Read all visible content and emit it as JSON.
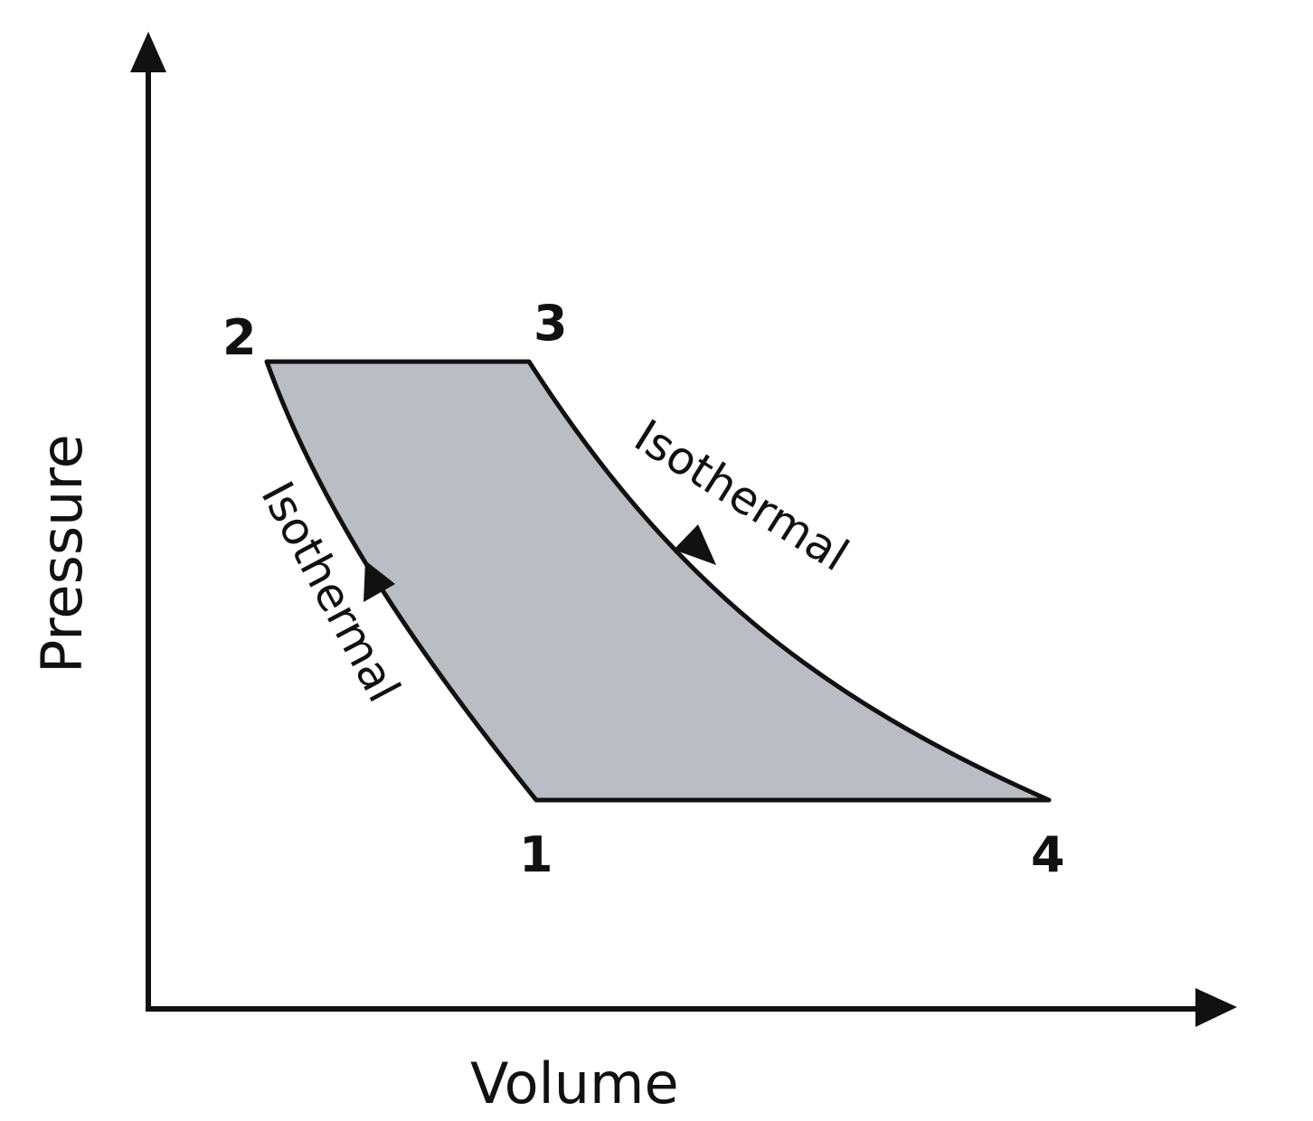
{
  "axes": {
    "x_label": "Volume",
    "y_label": "Pressure"
  },
  "points": {
    "p1": "1",
    "p2": "2",
    "p3": "3",
    "p4": "4"
  },
  "processes": {
    "upper_curve_label": "Isothermal",
    "lower_curve_label": "Isothermal"
  },
  "colors": {
    "fill": "#babdc3",
    "stroke": "#111111"
  }
}
